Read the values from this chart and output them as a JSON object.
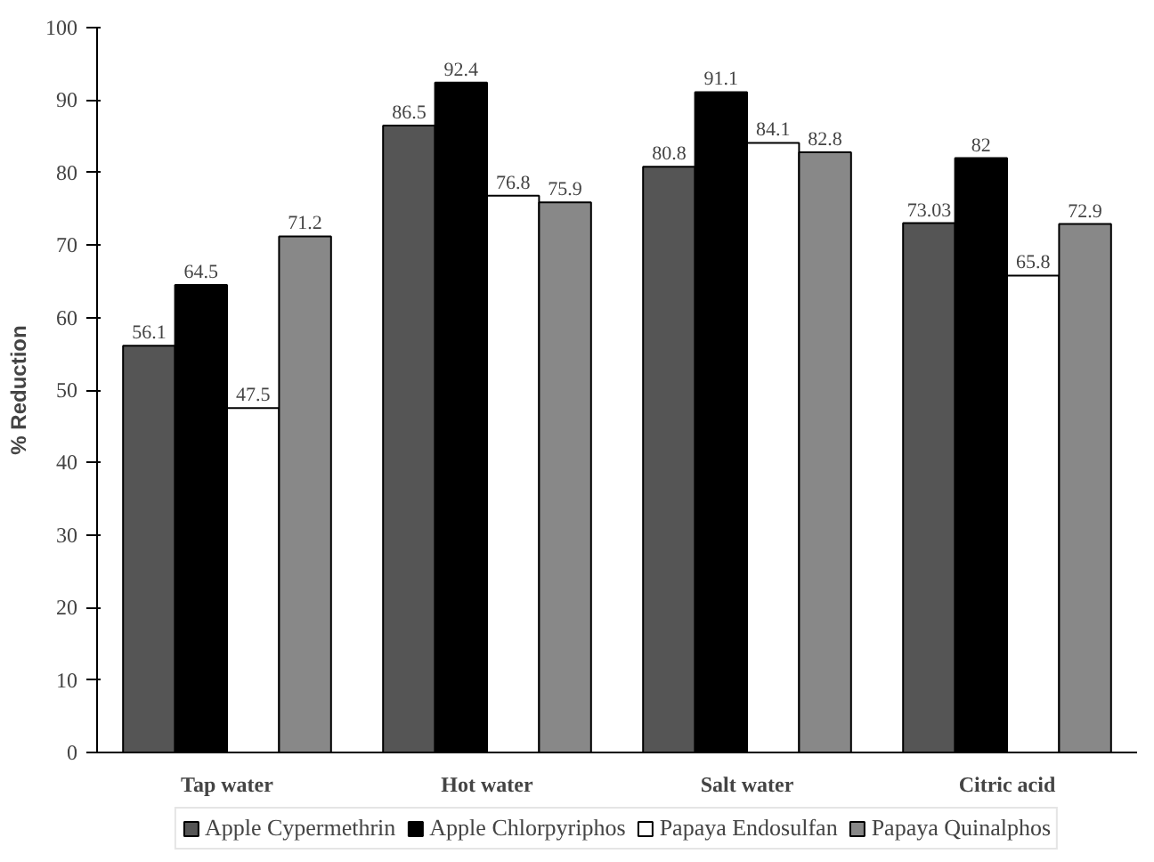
{
  "chart_data": {
    "type": "bar",
    "ylabel": "% Reduction",
    "categories": [
      "Tap water",
      "Hot water",
      "Salt water",
      "Citric acid"
    ],
    "series": [
      {
        "name": "Apple Cypermethrin",
        "color": "#555555",
        "values": [
          56.1,
          86.5,
          80.8,
          73.03
        ]
      },
      {
        "name": "Apple Chlorpyriphos",
        "color": "#000000",
        "values": [
          64.5,
          92.4,
          91.1,
          82
        ]
      },
      {
        "name": "Papaya Endosulfan",
        "color": "#ffffff",
        "values": [
          47.5,
          76.8,
          84.1,
          65.8
        ]
      },
      {
        "name": "Papaya Quinalphos",
        "color": "#888888",
        "values": [
          71.2,
          75.9,
          82.8,
          72.9
        ]
      }
    ],
    "ylim": [
      0,
      100
    ],
    "yticks": [
      0,
      10,
      20,
      30,
      40,
      50,
      60,
      70,
      80,
      90,
      100
    ],
    "grid": false,
    "data_labels": true,
    "legend": "bottom"
  }
}
